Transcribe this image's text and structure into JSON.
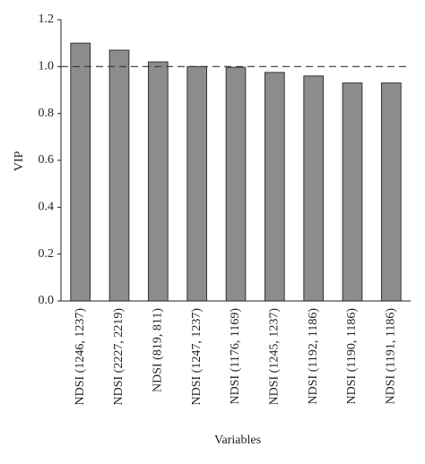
{
  "chart_data": {
    "type": "bar",
    "x_label": "Variables",
    "y_label": "VIP",
    "categories": [
      "NDSI (1246, 1237)",
      "NDSI (2227, 2219)",
      "NDSI (819, 811)",
      "NDSI (1247, 1237)",
      "NDSI (1176, 1169)",
      "NDSI (1245, 1237)",
      "NDSI (1192, 1186)",
      "NDSI (1190, 1186)",
      "NDSI (1191, 1186)"
    ],
    "values": [
      1.1,
      1.07,
      1.02,
      1.0,
      0.997,
      0.975,
      0.96,
      0.93,
      0.93
    ],
    "color": "#8c8c8c",
    "ylim": [
      0,
      1.2
    ],
    "yticks": [
      {
        "value": 0,
        "label": "0.0"
      },
      0.2,
      0.4,
      0.6,
      0.8,
      {
        "value": 1,
        "label": "1.0"
      },
      1.2
    ],
    "reference_line": 1.0,
    "grid": false
  }
}
